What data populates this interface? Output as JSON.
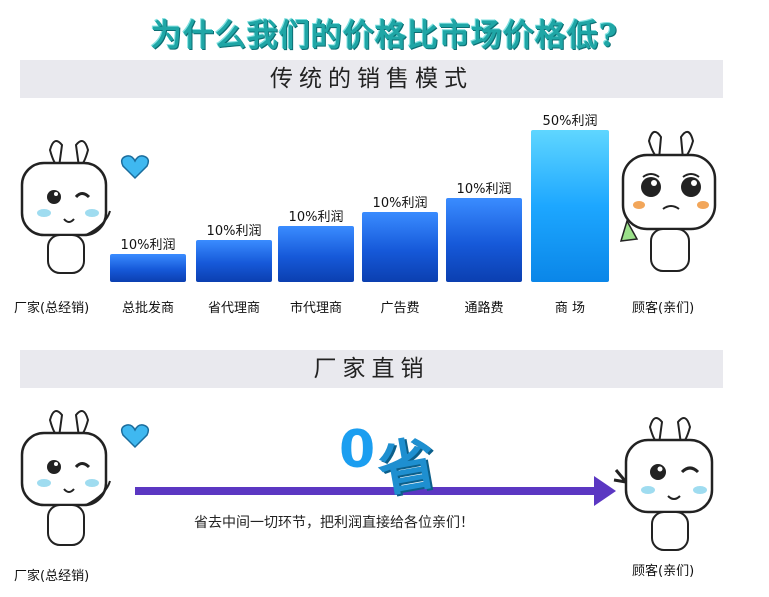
{
  "title": "为什么我们的价格比市场价格低?",
  "sections": {
    "traditional": "传统的销售模式",
    "direct": "厂家直销"
  },
  "chart_data": {
    "type": "bar",
    "categories": [
      "总批发商",
      "省代理商",
      "市代理商",
      "广告费",
      "通路费",
      "商 场"
    ],
    "data_labels": [
      "10%利润",
      "10%利润",
      "10%利润",
      "10%利润",
      "10%利润",
      "50%利润"
    ],
    "values": [
      10,
      20,
      30,
      40,
      50,
      100
    ],
    "colors": {
      "normal": "#1659d9",
      "highlight": "#1da7ff"
    }
  },
  "chain_start_label": "厂家(总经销)",
  "chain_end_label": "顾客(亲们)",
  "direct_zero": "0",
  "direct_sheng": "省",
  "direct_text": "省去中间一切环节，把利润直接给各位亲们！",
  "factory_label": "厂家(总经销)",
  "customer_label": "顾客(亲们)"
}
